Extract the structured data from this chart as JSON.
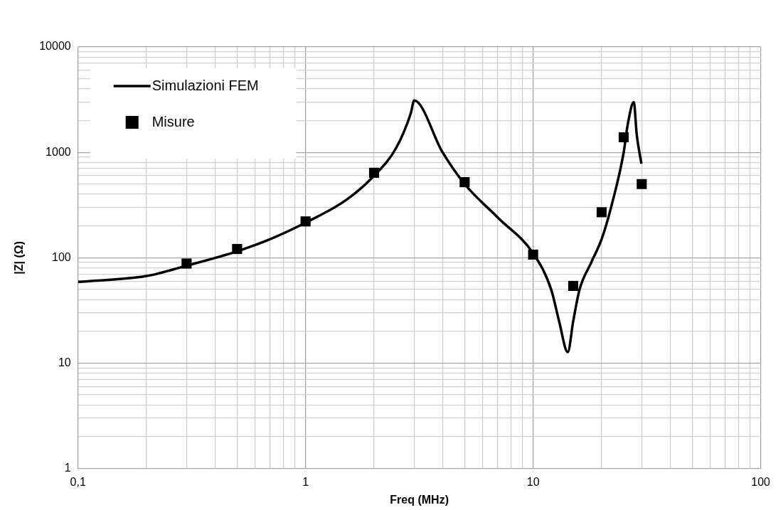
{
  "chart_data": {
    "type": "line",
    "xlabel": "Freq (MHz)",
    "ylabel": "|Z| (Ω)",
    "log": "xy",
    "grid": true,
    "legend": "top left",
    "xlim": [
      0.1,
      100
    ],
    "ylim": [
      1,
      10000
    ],
    "xticks": [
      {
        "value": 0.1,
        "label": "0,1"
      },
      {
        "value": 0.2,
        "label": null
      },
      {
        "value": 0.3,
        "label": null
      },
      {
        "value": 0.4,
        "label": null
      },
      {
        "value": 0.5,
        "label": null
      },
      {
        "value": 0.6,
        "label": null
      },
      {
        "value": 0.7,
        "label": null
      },
      {
        "value": 0.8,
        "label": null
      },
      {
        "value": 0.9,
        "label": null
      },
      1,
      {
        "value": 2,
        "label": null
      },
      {
        "value": 3,
        "label": null
      },
      {
        "value": 4,
        "label": null
      },
      {
        "value": 5,
        "label": null
      },
      {
        "value": 6,
        "label": null
      },
      {
        "value": 7,
        "label": null
      },
      {
        "value": 8,
        "label": null
      },
      {
        "value": 9,
        "label": null
      },
      10,
      {
        "value": 20,
        "label": null
      },
      {
        "value": 30,
        "label": null
      },
      {
        "value": 40,
        "label": null
      },
      {
        "value": 50,
        "label": null
      },
      {
        "value": 60,
        "label": null
      },
      {
        "value": 70,
        "label": null
      },
      {
        "value": 80,
        "label": null
      },
      {
        "value": 90,
        "label": null
      },
      100
    ],
    "yticks": [
      1,
      {
        "value": 2,
        "label": null
      },
      {
        "value": 3,
        "label": null
      },
      {
        "value": 4,
        "label": null
      },
      {
        "value": 5,
        "label": null
      },
      {
        "value": 6,
        "label": null
      },
      {
        "value": 7,
        "label": null
      },
      {
        "value": 8,
        "label": null
      },
      {
        "value": 9,
        "label": null
      },
      10,
      {
        "value": 20,
        "label": null
      },
      {
        "value": 30,
        "label": null
      },
      {
        "value": 40,
        "label": null
      },
      {
        "value": 50,
        "label": null
      },
      {
        "value": 60,
        "label": null
      },
      {
        "value": 70,
        "label": null
      },
      {
        "value": 80,
        "label": null
      },
      {
        "value": 90,
        "label": null
      },
      100,
      {
        "value": 200,
        "label": null
      },
      {
        "value": 300,
        "label": null
      },
      {
        "value": 400,
        "label": null
      },
      {
        "value": 500,
        "label": null
      },
      {
        "value": 600,
        "label": null
      },
      {
        "value": 700,
        "label": null
      },
      {
        "value": 800,
        "label": null
      },
      {
        "value": 900,
        "label": null
      },
      1000,
      {
        "value": 2000,
        "label": null
      },
      {
        "value": 3000,
        "label": null
      },
      {
        "value": 4000,
        "label": null
      },
      {
        "value": 5000,
        "label": null
      },
      {
        "value": 6000,
        "label": null
      },
      {
        "value": 7000,
        "label": null
      },
      {
        "value": 8000,
        "label": null
      },
      {
        "value": 9000,
        "label": null
      },
      10000
    ],
    "series": [
      {
        "name": "Simulazioni FEM",
        "color": "#000000",
        "marker": "none",
        "line_style": "solid",
        "x": [
          0.1,
          0.2,
          0.3,
          0.5,
          0.7,
          1,
          1.5,
          2,
          2.5,
          2.9,
          3,
          4,
          5,
          7,
          10,
          12,
          13,
          14.2,
          15,
          16,
          18,
          20,
          22,
          25,
          26,
          27.7,
          28.5,
          29.9
        ],
        "values": [
          59,
          67,
          84,
          115,
          150,
          215,
          350,
          600,
          1100,
          2350,
          3100,
          1000,
          500,
          240,
          110,
          50,
          25,
          12.7,
          25,
          50,
          90,
          150,
          300,
          1000,
          1800,
          3000,
          1500,
          780
        ]
      },
      {
        "name": "Misure",
        "type": "scatter",
        "color": "#000000",
        "marker": "square",
        "x": [
          0.3,
          0.5,
          1,
          2,
          5,
          10,
          15,
          20,
          25,
          30
        ],
        "values": [
          88,
          121,
          221,
          640,
          521,
          107,
          54,
          270,
          1390,
          500
        ]
      }
    ]
  }
}
